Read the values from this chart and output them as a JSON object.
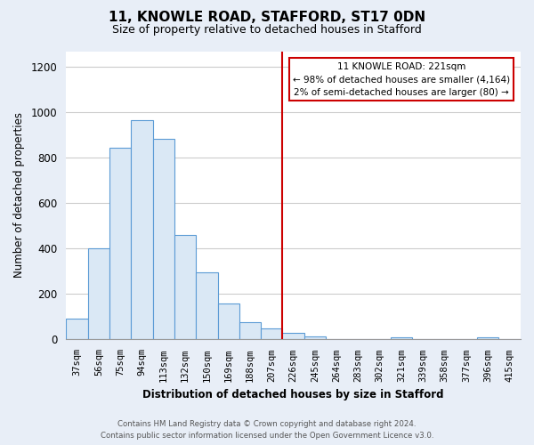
{
  "title": "11, KNOWLE ROAD, STAFFORD, ST17 0DN",
  "subtitle": "Size of property relative to detached houses in Stafford",
  "xlabel": "Distribution of detached houses by size in Stafford",
  "ylabel": "Number of detached properties",
  "bar_labels": [
    "37sqm",
    "56sqm",
    "75sqm",
    "94sqm",
    "113sqm",
    "132sqm",
    "150sqm",
    "169sqm",
    "188sqm",
    "207sqm",
    "226sqm",
    "245sqm",
    "264sqm",
    "283sqm",
    "302sqm",
    "321sqm",
    "339sqm",
    "358sqm",
    "377sqm",
    "396sqm",
    "415sqm"
  ],
  "bar_values": [
    90,
    400,
    845,
    965,
    885,
    460,
    295,
    160,
    75,
    50,
    30,
    15,
    0,
    0,
    0,
    10,
    0,
    0,
    0,
    10,
    0
  ],
  "bar_color": "#dae8f5",
  "bar_edge_color": "#5b9bd5",
  "vline_x_idx": 10,
  "vline_color": "#cc0000",
  "ylim": [
    0,
    1270
  ],
  "yticks": [
    0,
    200,
    400,
    600,
    800,
    1000,
    1200
  ],
  "annotation_title": "11 KNOWLE ROAD: 221sqm",
  "annotation_line1": "← 98% of detached houses are smaller (4,164)",
  "annotation_line2": "2% of semi-detached houses are larger (80) →",
  "annotation_box_color": "#ffffff",
  "annotation_box_edge": "#cc0000",
  "footer_line1": "Contains HM Land Registry data © Crown copyright and database right 2024.",
  "footer_line2": "Contains public sector information licensed under the Open Government Licence v3.0.",
  "fig_background_color": "#e8eef7",
  "plot_background_color": "#ffffff",
  "grid_color": "#cccccc"
}
